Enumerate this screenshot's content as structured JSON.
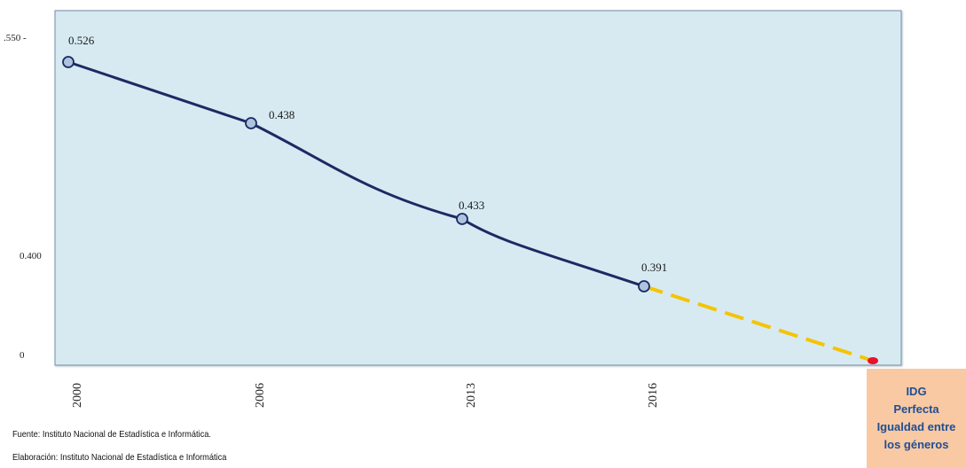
{
  "chart_data": {
    "type": "line",
    "title": "",
    "xlabel": "",
    "ylabel": "",
    "x": [
      "2000",
      "2006",
      "2013",
      "2016"
    ],
    "series": [
      {
        "values": [
          0.526,
          0.438,
          0.433,
          0.391
        ]
      }
    ],
    "data_labels": [
      "0.526",
      "0.438",
      "0.433",
      "0.391"
    ],
    "projection": {
      "from": "2016",
      "to": "IDG Perfecta",
      "style": "dashed",
      "end_marker": "red dot"
    },
    "y_tick_labels": [
      ".550 -",
      "0.400",
      "0"
    ],
    "grid": false,
    "colors": {
      "line": "#1c2a63",
      "marker_fill": "#aec3dd",
      "projection": "#f5c400",
      "end_marker": "#e8122a",
      "plot_bg": "#d7eaf2"
    }
  },
  "idg_box": {
    "lines": [
      "IDG",
      "Perfecta",
      "Igualdad entre",
      "los  géneros"
    ]
  },
  "notes": {
    "source": "Fuente: Instituto Nacional de Estadística e Informática.",
    "elaboration": "Elaboración: Instituto Nacional de Estadística e Informática"
  }
}
